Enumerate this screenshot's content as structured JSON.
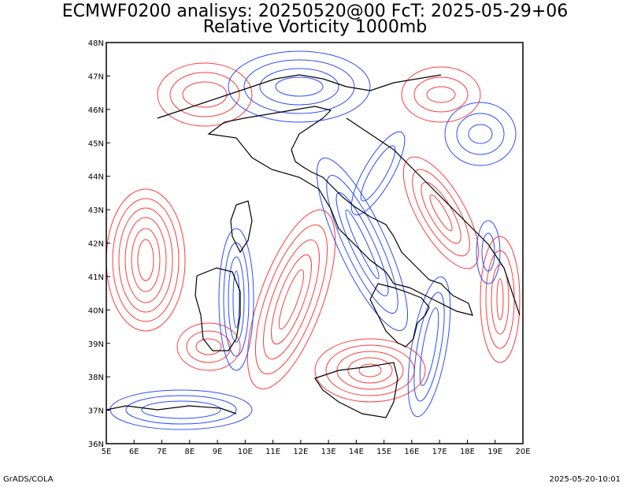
{
  "titles": {
    "line1": "ECMWF0200 analisys: 20250520@00 FcT: 2025-05-29+06",
    "line2": "Relative Vorticity 1000mb"
  },
  "map": {
    "projection": "latlon",
    "lon_range": [
      5,
      20
    ],
    "lat_range": [
      36,
      48
    ],
    "lon_tick_labels": [
      "5E",
      "6E",
      "7E",
      "8E",
      "9E",
      "10E",
      "11E",
      "12E",
      "13E",
      "14E",
      "15E",
      "16E",
      "17E",
      "18E",
      "19E",
      "20E"
    ],
    "lat_tick_labels": [
      "36N",
      "37N",
      "38N",
      "39N",
      "40N",
      "41N",
      "42N",
      "43N",
      "44N",
      "45N",
      "46N",
      "47N",
      "48N"
    ],
    "positive_contour_color": "#ff3b3b",
    "negative_contour_color": "#2b4bff",
    "border_color": "#000000"
  },
  "footer": {
    "left": "GrADS/COLA",
    "right": "2025-05-20-10:01"
  }
}
